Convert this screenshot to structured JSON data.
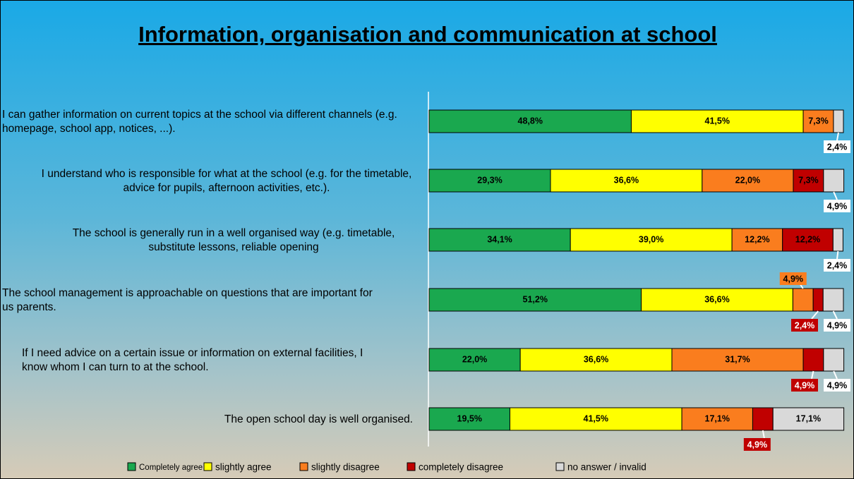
{
  "chart_data": {
    "type": "stacked-bar-horizontal",
    "title": "Information, organisation and communication at school",
    "categories": [
      "I can gather information on current topics at the school via different channels (e.g. homepage, school app, notices, ...).",
      "I understand who is responsible for what at the school (e.g. for the timetable, advice for pupils, afternoon activities, etc.).",
      "The school is generally run in a well organised way (e.g. timetable, substitute lessons, reliable opening",
      "The school management is approachable on questions that are important for us parents.",
      "If I need advice on a certain issue or information on external facilities, I know whom I can turn to at the school.",
      "The open school day is well organised."
    ],
    "xlim": [
      0,
      100
    ],
    "series": [
      {
        "name": "Completely agree",
        "color": "#1aa84f",
        "values": [
          48.8,
          29.3,
          34.1,
          51.2,
          22.0,
          19.5
        ],
        "value_labels": [
          "48,8%",
          "29,3%",
          "34,1%",
          "51,2%",
          "22,0%",
          "19,5%"
        ]
      },
      {
        "name": "slightly agree",
        "color": "#ffff00",
        "values": [
          41.5,
          36.6,
          39.0,
          36.6,
          36.6,
          41.5
        ],
        "value_labels": [
          "41,5%",
          "36,6%",
          "39,0%",
          "36,6%",
          "36,6%",
          "41,5%"
        ]
      },
      {
        "name": "slightly disagree",
        "color": "#fa7d1e",
        "values": [
          7.3,
          22.0,
          12.2,
          4.9,
          31.7,
          17.1
        ],
        "value_labels": [
          "7,3%",
          "22,0%",
          "12,2%",
          "4,9%",
          "31,7%",
          "17,1%"
        ]
      },
      {
        "name": "completely disagree",
        "color": "#c00000",
        "values": [
          null,
          7.3,
          12.2,
          2.4,
          4.9,
          4.9
        ],
        "value_labels": [
          null,
          "7,3%",
          "12,2%",
          "2,4%",
          "4,9%",
          "4,9%"
        ]
      },
      {
        "name": "no answer / invalid",
        "color": "#d9d9d9",
        "values": [
          2.4,
          4.9,
          2.4,
          4.9,
          4.9,
          17.1
        ],
        "value_labels": [
          "2,4%",
          "4,9%",
          "2,4%",
          "4,9%",
          "4,9%",
          "17,1%"
        ]
      }
    ]
  }
}
